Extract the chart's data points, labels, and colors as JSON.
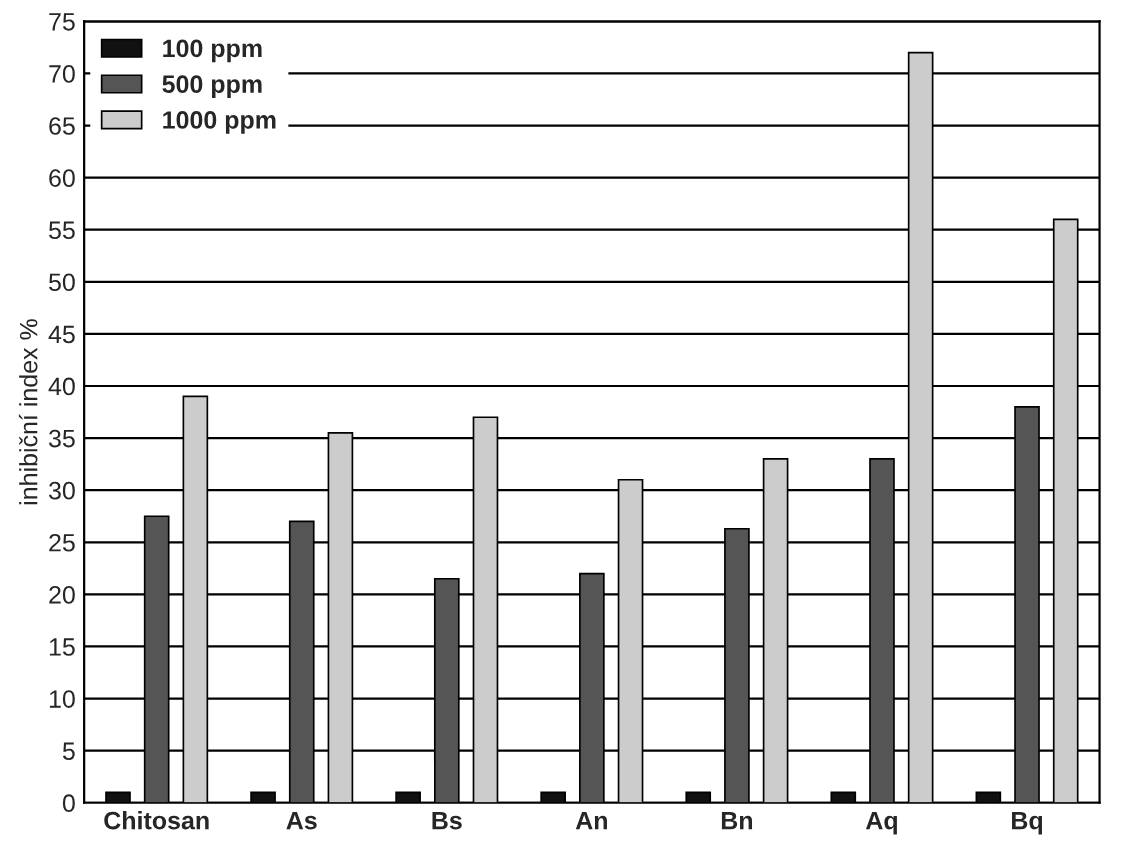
{
  "chart_data": {
    "type": "bar",
    "ylabel": "inhibiční index %",
    "categories": [
      "Chitosan",
      "As",
      "Bs",
      "An",
      "Bn",
      "Aq",
      "Bq"
    ],
    "series": [
      {
        "name": "100 ppm",
        "color": "#111111",
        "values": [
          1,
          1,
          1,
          1,
          1,
          1,
          1
        ]
      },
      {
        "name": "500 ppm",
        "color": "#555555",
        "values": [
          27.5,
          27,
          21.5,
          22,
          26.3,
          33,
          38
        ]
      },
      {
        "name": "1000 ppm",
        "color": "#cccccc",
        "values": [
          39,
          35.5,
          37,
          31,
          33,
          72,
          56
        ]
      }
    ],
    "ylim": [
      0,
      75
    ],
    "yticks": [
      0,
      5,
      10,
      15,
      20,
      25,
      30,
      35,
      40,
      45,
      50,
      55,
      60,
      65,
      70,
      75
    ],
    "grid": "y",
    "legend": "top left"
  }
}
